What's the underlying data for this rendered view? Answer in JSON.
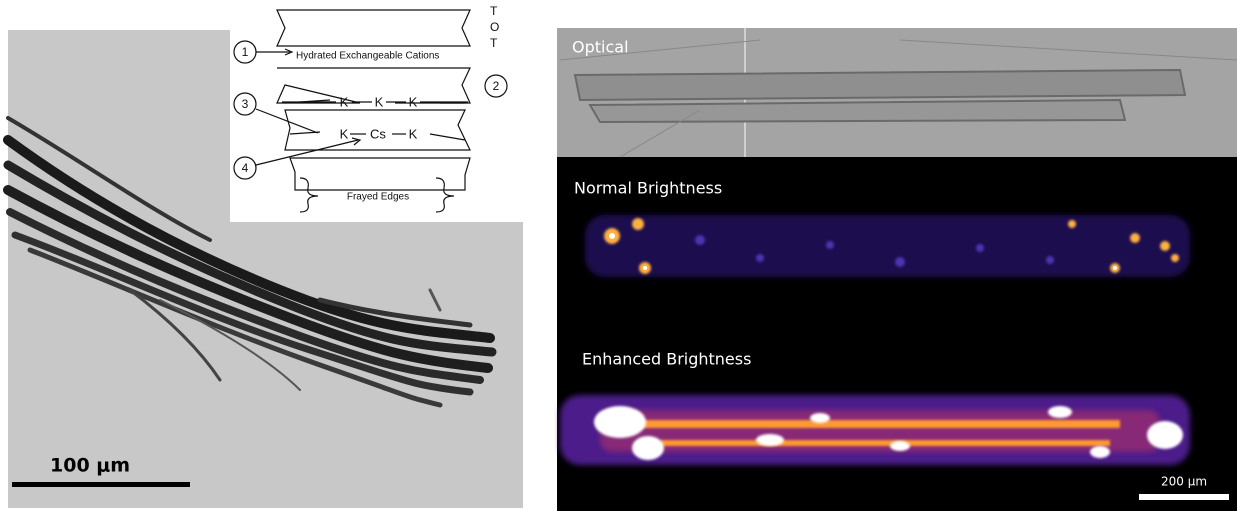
{
  "inset": {
    "layers": [
      "T",
      "O",
      "T"
    ],
    "callouts": [
      "1",
      "2",
      "3",
      "4"
    ],
    "interlayer_label": "Hydrated Exchangeable Cations",
    "row_upper": [
      "K",
      "K",
      "K"
    ],
    "row_lower": [
      "K",
      "Cs",
      "K"
    ],
    "bottom_label": "Frayed Edges"
  },
  "left_panel": {
    "scale_bar": "100 μm"
  },
  "right_panel": {
    "sections": [
      "Optical",
      "Normal Brightness",
      "Enhanced Brightness"
    ],
    "scale_bar": "200 μm"
  }
}
